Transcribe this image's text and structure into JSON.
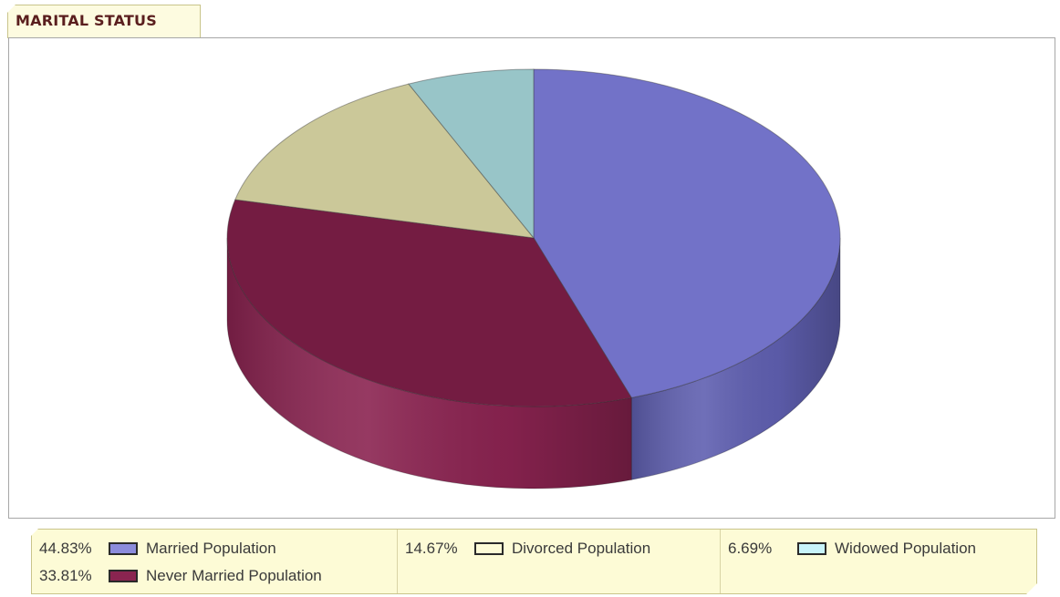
{
  "title": "MARITAL STATUS",
  "chart_data": {
    "type": "pie",
    "style": "3d",
    "title": "MARITAL STATUS",
    "series": [
      {
        "name": "Married Population",
        "value": 44.83,
        "label": "44.83%",
        "color": "#7272c8",
        "side_color": "#5f5fb0"
      },
      {
        "name": "Never Married Population",
        "value": 33.81,
        "label": "33.81%",
        "color": "#741c42",
        "side_color": "#8a2350"
      },
      {
        "name": "Divorced Population",
        "value": 14.67,
        "label": "14.67%",
        "color": "#cbc899",
        "side_color": "#b3af80"
      },
      {
        "name": "Widowed Population",
        "value": 6.69,
        "label": "6.69%",
        "color": "#98c5c8",
        "side_color": "#7fa9ac"
      }
    ],
    "legend_placement": "bottom"
  },
  "legend": {
    "columns": [
      {
        "items": [
          {
            "pct": "44.83%",
            "name": "Married Population",
            "swatch": "#8c8cdc"
          },
          {
            "pct": "33.81%",
            "name": "Never Married Population",
            "swatch": "#8a2450"
          }
        ]
      },
      {
        "items": [
          {
            "pct": "14.67%",
            "name": "Divorced Population",
            "swatch": "#fdfbd6"
          }
        ]
      },
      {
        "items": [
          {
            "pct": "6.69%",
            "name": "Widowed Population",
            "swatch": "#c8f4fb"
          }
        ]
      }
    ]
  }
}
